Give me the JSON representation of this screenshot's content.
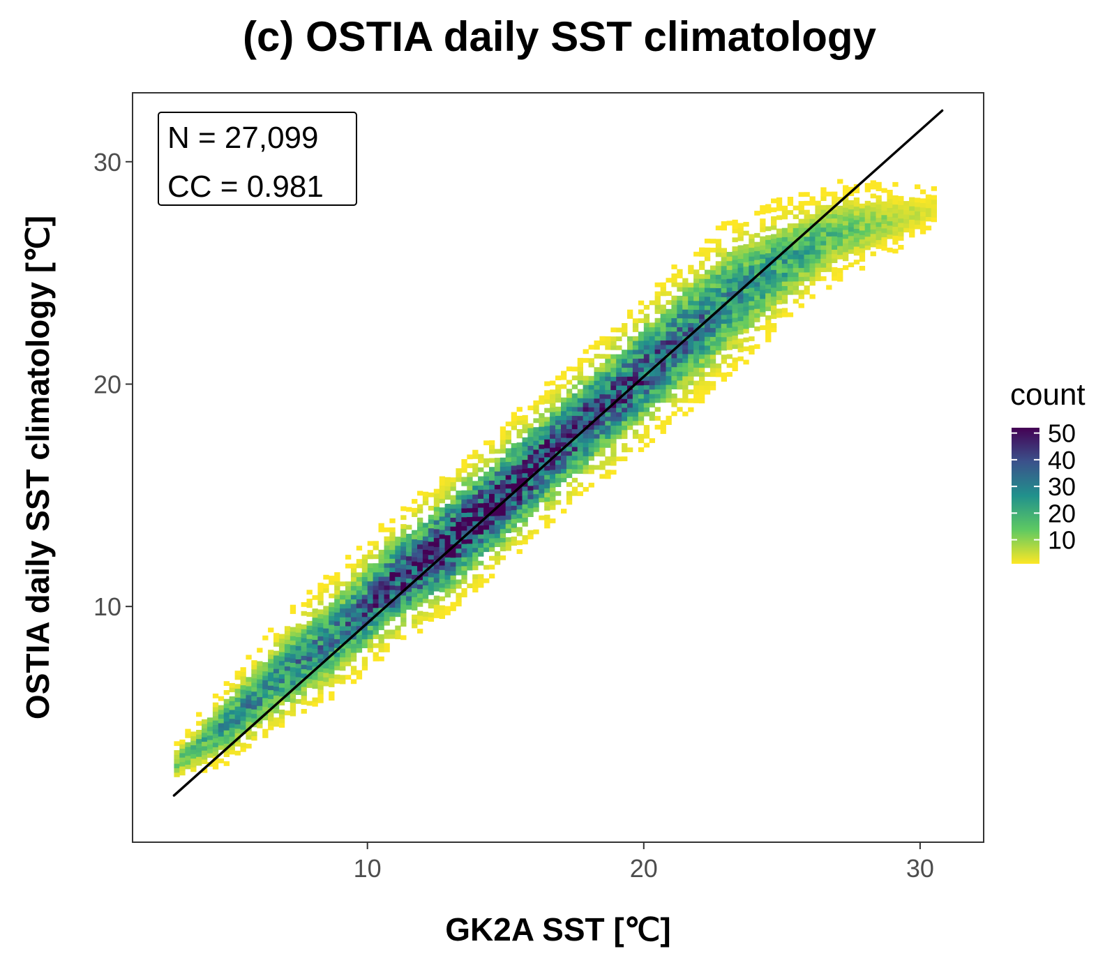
{
  "chart_data": {
    "type": "heatmap",
    "title": "(c) OSTIA daily SST climatology",
    "xlabel": "GK2A SST [℃]",
    "ylabel": "OSTIA daily SST climatology [℃]",
    "xlim": [
      1.5,
      32.3
    ],
    "ylim": [
      -0.6,
      33.1
    ],
    "x_ticks": [
      10,
      20,
      30
    ],
    "y_ticks": [
      10,
      20,
      30
    ],
    "grid": false,
    "annotation": {
      "lines": [
        "N = 27,099",
        "CC = 0.981"
      ],
      "placement": "top-left"
    },
    "n": 27099,
    "cc": 0.981,
    "fit_line": {
      "x": [
        3.0,
        30.8
      ],
      "y": [
        1.5,
        32.3
      ]
    },
    "density_ridge": {
      "x": [
        3,
        5,
        7,
        9,
        11,
        13,
        15,
        17,
        19,
        21,
        23,
        25,
        27,
        29,
        30.5
      ],
      "y_center": [
        2.9,
        4.8,
        7.0,
        8.9,
        11.1,
        12.9,
        15.0,
        17.3,
        19.4,
        21.6,
        23.7,
        25.4,
        26.8,
        27.4,
        27.9
      ],
      "spread": [
        0.5,
        1.2,
        1.6,
        1.8,
        1.9,
        2.0,
        2.0,
        2.0,
        2.1,
        2.2,
        2.3,
        1.8,
        1.4,
        1.0,
        0.5
      ],
      "peak_count": [
        12,
        25,
        28,
        30,
        42,
        50,
        48,
        42,
        40,
        35,
        28,
        22,
        15,
        8,
        4
      ]
    },
    "color_scale": {
      "name": "count",
      "breaks": [
        50,
        40,
        30,
        20,
        10
      ],
      "range": [
        1,
        52
      ],
      "colors": [
        "#FDE725",
        "#5EC962",
        "#21918C",
        "#3B528B",
        "#440154"
      ]
    }
  }
}
